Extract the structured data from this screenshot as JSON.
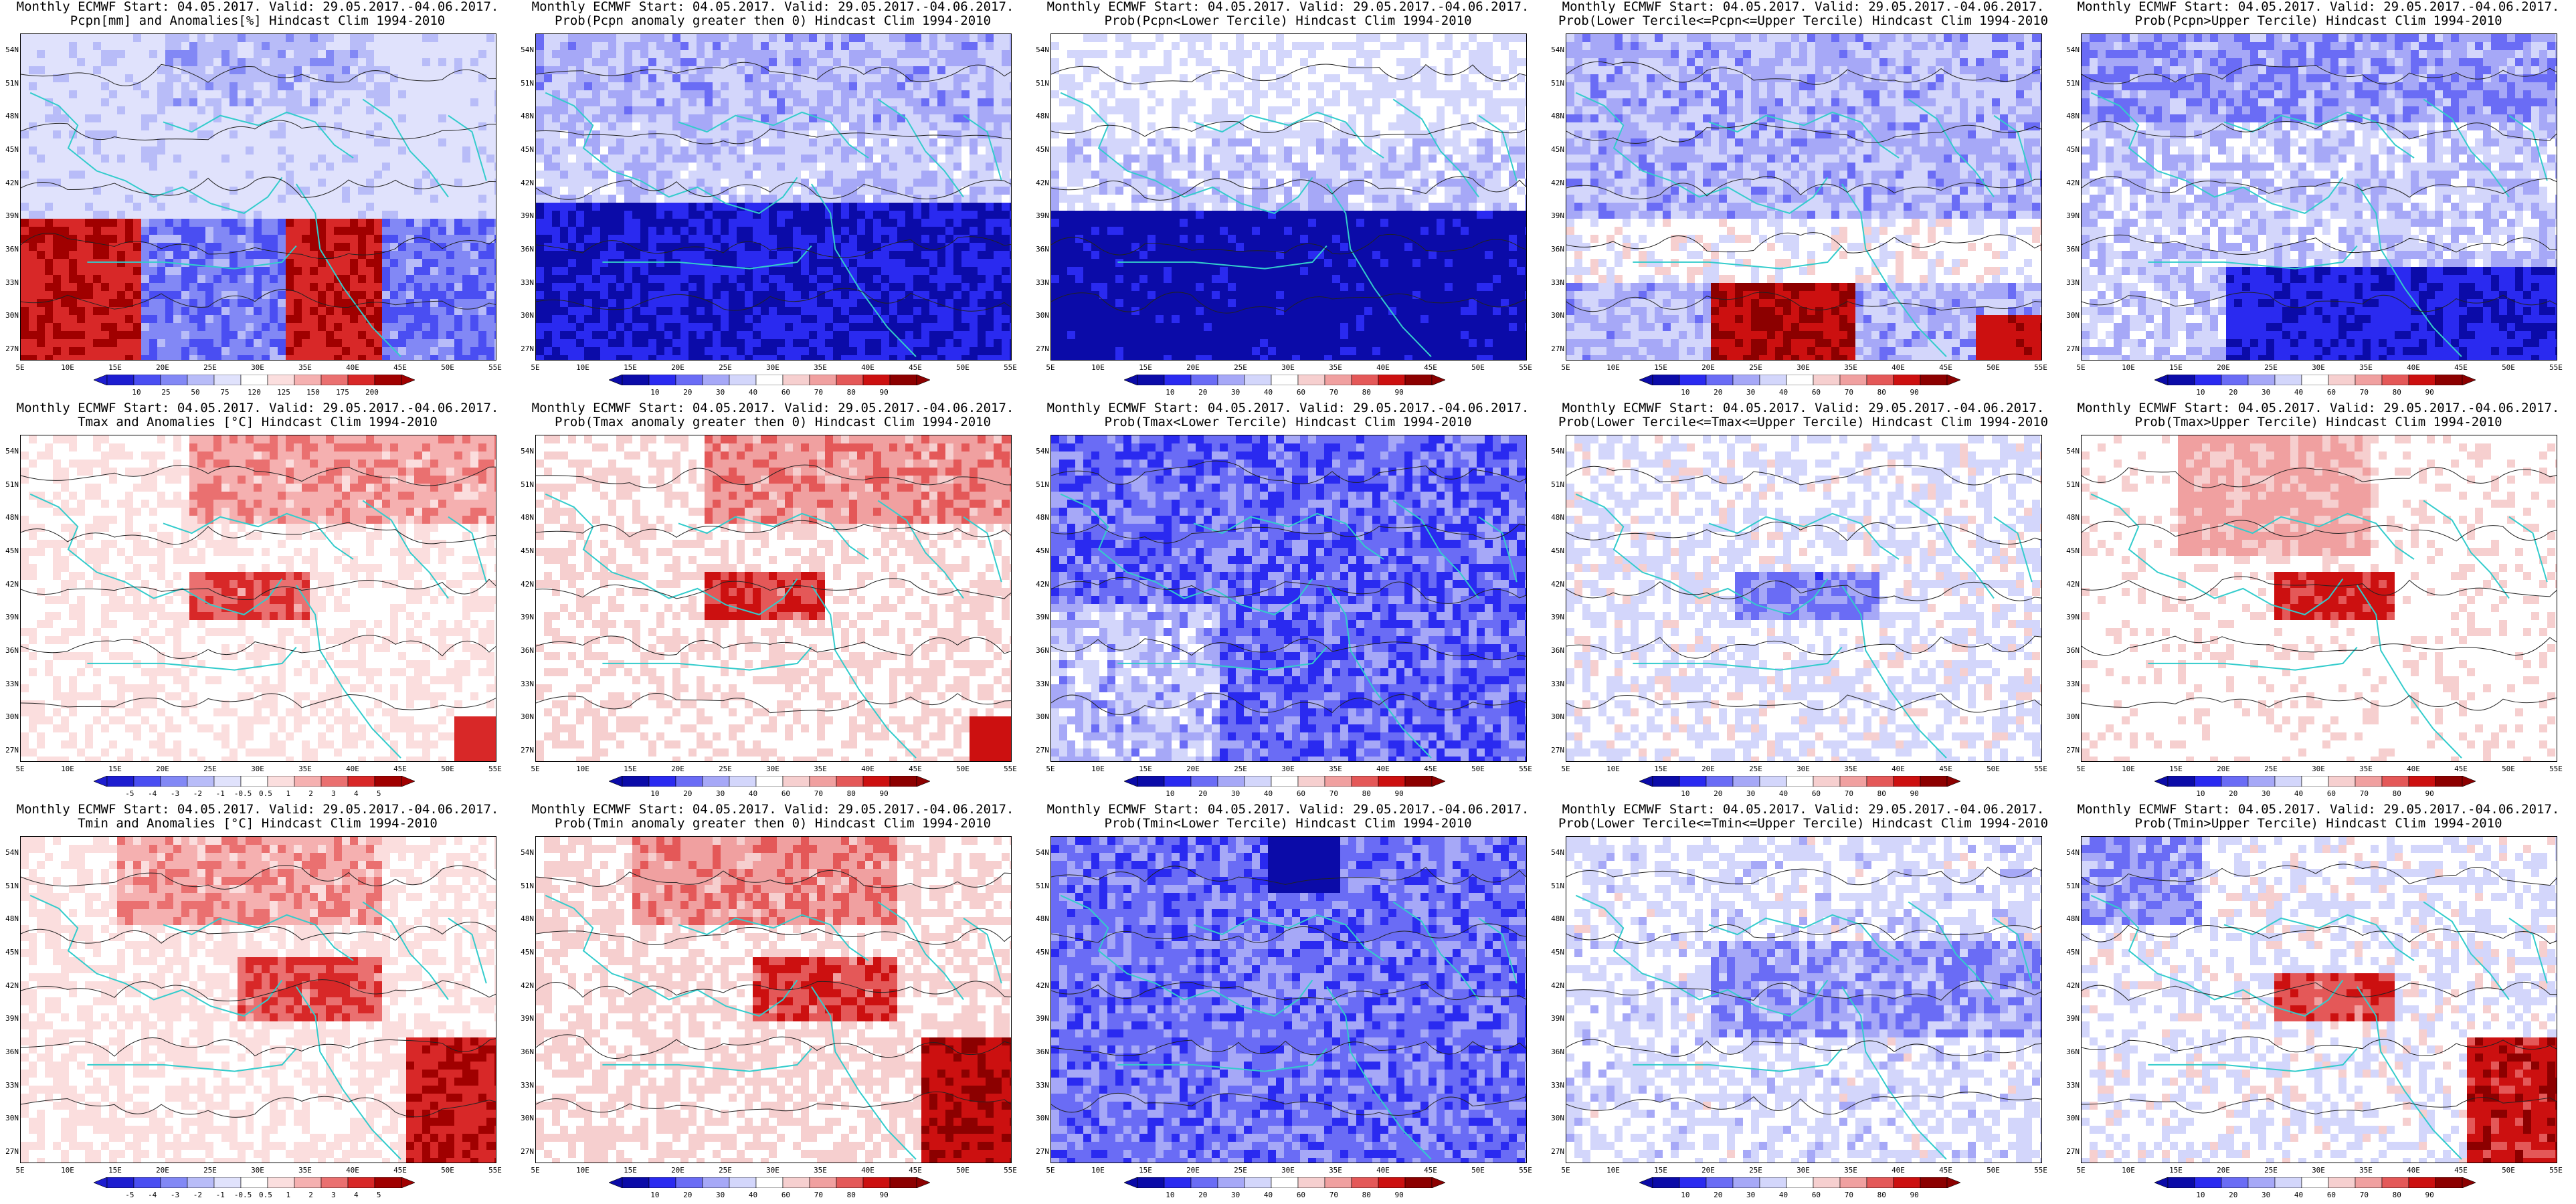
{
  "axes": {
    "lat_labels": [
      "54N",
      "51N",
      "48N",
      "45N",
      "42N",
      "39N",
      "36N",
      "33N",
      "30N",
      "27N"
    ],
    "lon_labels": [
      "5E",
      "10E",
      "15E",
      "20E",
      "25E",
      "30E",
      "35E",
      "40E",
      "45E",
      "50E",
      "55E"
    ]
  },
  "palettes": {
    "prob": [
      "#0b0ba8",
      "#2a2af0",
      "#6a6cf5",
      "#a6a8f7",
      "#d3d6fb",
      "#ffffff",
      "#f6cfcf",
      "#f0a0a0",
      "#e45858",
      "#cc1010",
      "#8c0000"
    ],
    "diverge": [
      "#1d1dd0",
      "#4a4ef2",
      "#8288f5",
      "#b8bcf8",
      "#e0e2fc",
      "#ffffff",
      "#fbdede",
      "#f5b0b0",
      "#ea7070",
      "#d82828",
      "#a00000"
    ]
  },
  "panels": [
    {
      "title1": "Monthly ECMWF Start: 04.05.2017. Valid: 29.05.2017.-04.06.2017.",
      "title2": "Pcpn[mm] and Anomalies[%] Hindcast Clim 1994-2010",
      "palette": "diverge",
      "pattern": "pcp_anom",
      "colorbar_labels": [
        "10",
        "25",
        "50",
        "75",
        "120",
        "125",
        "150",
        "175",
        "200"
      ]
    },
    {
      "title1": "Monthly ECMWF Start: 04.05.2017. Valid: 29.05.2017.-04.06.2017.",
      "title2": "Prob(Pcpn anomaly greater then 0) Hindcast Clim 1994-2010",
      "palette": "prob",
      "pattern": "pcp_pos",
      "colorbar_labels": [
        "10",
        "20",
        "30",
        "40",
        "60",
        "70",
        "80",
        "90"
      ]
    },
    {
      "title1": "Monthly ECMWF Start: 04.05.2017. Valid: 29.05.2017.-04.06.2017.",
      "title2": "Prob(Pcpn<Lower Tercile) Hindcast Clim 1994-2010",
      "palette": "prob",
      "pattern": "pcp_low",
      "colorbar_labels": [
        "10",
        "20",
        "30",
        "40",
        "60",
        "70",
        "80",
        "90"
      ]
    },
    {
      "title1": "Monthly ECMWF Start: 04.05.2017. Valid: 29.05.2017.-04.06.2017.",
      "title2": "Prob(Lower Tercile<=Pcpn<=Upper Tercile) Hindcast Clim 1994-2010",
      "palette": "prob",
      "pattern": "pcp_mid",
      "colorbar_labels": [
        "10",
        "20",
        "30",
        "40",
        "60",
        "70",
        "80",
        "90"
      ]
    },
    {
      "title1": "Monthly ECMWF Start: 04.05.2017. Valid: 29.05.2017.-04.06.2017.",
      "title2": "Prob(Pcpn>Upper Tercile) Hindcast Clim 1994-2010",
      "palette": "prob",
      "pattern": "pcp_up",
      "colorbar_labels": [
        "10",
        "20",
        "30",
        "40",
        "60",
        "70",
        "80",
        "90"
      ]
    },
    {
      "title1": "Monthly ECMWF Start: 04.05.2017. Valid: 29.05.2017.-04.06.2017.",
      "title2": "Tmax and Anomalies [°C] Hindcast Clim 1994-2010",
      "palette": "diverge",
      "pattern": "t_anom",
      "colorbar_labels": [
        "-5",
        "-4",
        "-3",
        "-2",
        "-1",
        "-0.5",
        "0.5",
        "1",
        "2",
        "3",
        "4",
        "5"
      ]
    },
    {
      "title1": "Monthly ECMWF Start: 04.05.2017. Valid: 29.05.2017.-04.06.2017.",
      "title2": "Prob(Tmax anomaly greater then 0) Hindcast Clim 1994-2010",
      "palette": "prob",
      "pattern": "t_pos",
      "colorbar_labels": [
        "10",
        "20",
        "30",
        "40",
        "60",
        "70",
        "80",
        "90"
      ]
    },
    {
      "title1": "Monthly ECMWF Start: 04.05.2017. Valid: 29.05.2017.-04.06.2017.",
      "title2": "Prob(Tmax<Lower Tercile) Hindcast Clim 1994-2010",
      "palette": "prob",
      "pattern": "t_low",
      "colorbar_labels": [
        "10",
        "20",
        "30",
        "40",
        "60",
        "70",
        "80",
        "90"
      ]
    },
    {
      "title1": "Monthly ECMWF Start: 04.05.2017. Valid: 29.05.2017.-04.06.2017.",
      "title2": "Prob(Lower Tercile<=Tmax<=Upper Tercile) Hindcast Clim 1994-2010",
      "palette": "prob",
      "pattern": "t_mid",
      "colorbar_labels": [
        "10",
        "20",
        "30",
        "40",
        "60",
        "70",
        "80",
        "90"
      ]
    },
    {
      "title1": "Monthly ECMWF Start: 04.05.2017. Valid: 29.05.2017.-04.06.2017.",
      "title2": "Prob(Tmax>Upper Tercile) Hindcast Clim 1994-2010",
      "palette": "prob",
      "pattern": "t_up",
      "colorbar_labels": [
        "10",
        "20",
        "30",
        "40",
        "60",
        "70",
        "80",
        "90"
      ]
    },
    {
      "title1": "Monthly ECMWF Start: 04.05.2017. Valid: 29.05.2017.-04.06.2017.",
      "title2": "Tmin and Anomalies [°C] Hindcast Clim 1994-2010",
      "palette": "diverge",
      "pattern": "t_anom2",
      "colorbar_labels": [
        "-5",
        "-4",
        "-3",
        "-2",
        "-1",
        "-0.5",
        "0.5",
        "1",
        "2",
        "3",
        "4",
        "5"
      ]
    },
    {
      "title1": "Monthly ECMWF Start: 04.05.2017. Valid: 29.05.2017.-04.06.2017.",
      "title2": "Prob(Tmin anomaly greater then 0) Hindcast Clim 1994-2010",
      "palette": "prob",
      "pattern": "t_pos2",
      "colorbar_labels": [
        "10",
        "20",
        "30",
        "40",
        "60",
        "70",
        "80",
        "90"
      ]
    },
    {
      "title1": "Monthly ECMWF Start: 04.05.2017. Valid: 29.05.2017.-04.06.2017.",
      "title2": "Prob(Tmin<Lower Tercile) Hindcast Clim 1994-2010",
      "palette": "prob",
      "pattern": "t_low2",
      "colorbar_labels": [
        "10",
        "20",
        "30",
        "40",
        "60",
        "70",
        "80",
        "90"
      ]
    },
    {
      "title1": "Monthly ECMWF Start: 04.05.2017. Valid: 29.05.2017.-04.06.2017.",
      "title2": "Prob(Lower Tercile<=Tmin<=Upper Tercile) Hindcast Clim 1994-2010",
      "palette": "prob",
      "pattern": "t_mid2",
      "colorbar_labels": [
        "10",
        "20",
        "30",
        "40",
        "60",
        "70",
        "80",
        "90"
      ]
    },
    {
      "title1": "Monthly ECMWF Start: 04.05.2017. Valid: 29.05.2017.-04.06.2017.",
      "title2": "Prob(Tmin>Upper Tercile) Hindcast Clim 1994-2010",
      "palette": "prob",
      "pattern": "t_up2",
      "colorbar_labels": [
        "10",
        "20",
        "30",
        "40",
        "60",
        "70",
        "80",
        "90"
      ]
    }
  ]
}
